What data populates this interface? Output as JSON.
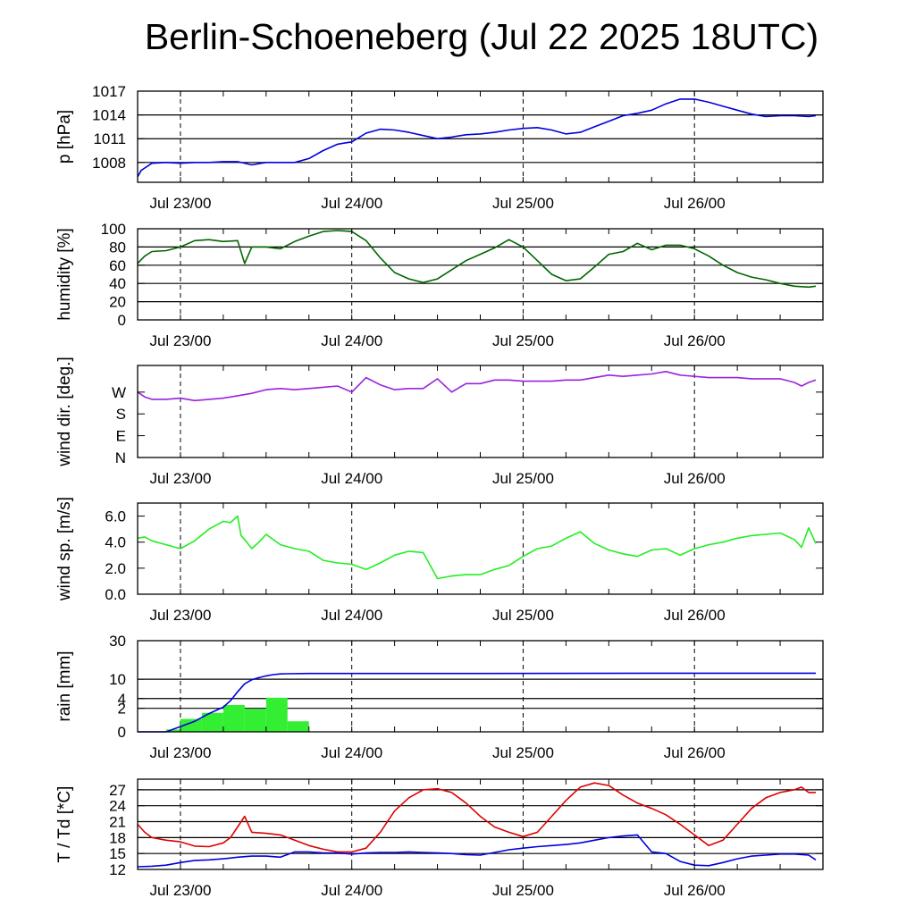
{
  "title": "Berlin-Schoeneberg (Jul 22 2025 18UTC)",
  "chart_data": [
    {
      "type": "line",
      "ylabel": "p [hPa]",
      "ylim": [
        1005.5,
        1017
      ],
      "yticks": [
        1008,
        1011,
        1014,
        1017
      ],
      "grid": true,
      "x_start": "Jul 22 18UTC",
      "x_tick_labels": [
        "Jul 23/00",
        "Jul 24/00",
        "Jul 25/00",
        "Jul 26/00"
      ],
      "series": [
        {
          "color": "#0000dd",
          "x": [
            0,
            0.5,
            1,
            2,
            4,
            6,
            8,
            10,
            12,
            14,
            16,
            18,
            20,
            22,
            24,
            26,
            28,
            30,
            32,
            34,
            36,
            38,
            40,
            42,
            44,
            46,
            48,
            50,
            52,
            54,
            56,
            58,
            60,
            62,
            64,
            66,
            68,
            70,
            72,
            74,
            76,
            78,
            80,
            82,
            84,
            86,
            88,
            90,
            92,
            94,
            95
          ],
          "values": [
            1006.2,
            1007,
            1007.3,
            1007.9,
            1008,
            1007.9,
            1008,
            1008,
            1008.1,
            1008.1,
            1007.7,
            1008,
            1008,
            1008,
            1008.5,
            1009.5,
            1010.3,
            1010.6,
            1011.7,
            1012.2,
            1012.1,
            1011.8,
            1011.4,
            1011,
            1011.2,
            1011.5,
            1011.6,
            1011.8,
            1012.1,
            1012.3,
            1012.4,
            1012.1,
            1011.6,
            1011.8,
            1012.5,
            1013.2,
            1013.9,
            1014.2,
            1014.6,
            1015.4,
            1016,
            1016,
            1015.6,
            1015.1,
            1014.6,
            1014.1,
            1013.8,
            1013.9,
            1013.9,
            1013.8,
            1013.9
          ]
        }
      ]
    },
    {
      "type": "line",
      "ylabel": "humidity [%]",
      "ylim": [
        0,
        100
      ],
      "yticks": [
        0,
        20,
        40,
        60,
        80,
        100
      ],
      "grid": true,
      "x_tick_labels": [
        "Jul 23/00",
        "Jul 24/00",
        "Jul 25/00",
        "Jul 26/00"
      ],
      "series": [
        {
          "color": "#006600",
          "x": [
            0,
            1,
            2,
            4,
            6,
            8,
            10,
            12,
            14,
            15,
            16,
            18,
            20,
            22,
            24,
            26,
            28,
            30,
            32,
            34,
            36,
            38,
            40,
            42,
            44,
            46,
            48,
            50,
            52,
            54,
            56,
            58,
            60,
            62,
            64,
            66,
            68,
            70,
            72,
            74,
            76,
            78,
            80,
            82,
            84,
            86,
            88,
            90,
            92,
            94,
            95
          ],
          "values": [
            62,
            70,
            75,
            76,
            80,
            87,
            88,
            86,
            87,
            62,
            80,
            80,
            78,
            86,
            92,
            97,
            98,
            97,
            87,
            68,
            52,
            45,
            41,
            45,
            55,
            65,
            72,
            79,
            88,
            80,
            65,
            50,
            43,
            45,
            58,
            72,
            75,
            84,
            77,
            82,
            82,
            78,
            70,
            60,
            52,
            47,
            44,
            40,
            37,
            36,
            37
          ]
        }
      ]
    },
    {
      "type": "line",
      "ylabel": "wind dir. [deg.]",
      "ylim": [
        0,
        380
      ],
      "yticks": [
        0,
        90,
        180,
        270
      ],
      "ytick_labels": [
        "N",
        "E",
        "S",
        "W"
      ],
      "grid": false,
      "x_tick_labels": [
        "Jul 23/00",
        "Jul 24/00",
        "Jul 25/00",
        "Jul 26/00"
      ],
      "series": [
        {
          "color": "#9922dd",
          "x": [
            0,
            1,
            2,
            4,
            6,
            8,
            10,
            12,
            14,
            16,
            18,
            20,
            22,
            24,
            26,
            28,
            30,
            32,
            34,
            36,
            38,
            40,
            42,
            44,
            46,
            48,
            50,
            52,
            54,
            56,
            58,
            60,
            62,
            64,
            66,
            68,
            70,
            72,
            74,
            76,
            78,
            80,
            82,
            84,
            86,
            88,
            90,
            92,
            93,
            94,
            95
          ],
          "values": [
            270,
            250,
            240,
            240,
            245,
            235,
            240,
            245,
            255,
            265,
            280,
            285,
            280,
            285,
            290,
            295,
            270,
            330,
            300,
            280,
            285,
            285,
            325,
            270,
            305,
            305,
            320,
            320,
            315,
            315,
            315,
            320,
            320,
            330,
            340,
            335,
            340,
            345,
            355,
            340,
            335,
            330,
            330,
            330,
            325,
            325,
            325,
            310,
            295,
            310,
            320
          ]
        }
      ]
    },
    {
      "type": "line",
      "ylabel": "wind sp. [m/s]",
      "ylim": [
        0,
        7
      ],
      "yticks": [
        0,
        2,
        4,
        6
      ],
      "ytick_labels": [
        "0.0",
        "2.0",
        "4.0",
        "6.0"
      ],
      "grid": false,
      "x_tick_labels": [
        "Jul 23/00",
        "Jul 24/00",
        "Jul 25/00",
        "Jul 26/00"
      ],
      "series": [
        {
          "color": "#22ee22",
          "x": [
            0,
            1,
            2,
            4,
            6,
            8,
            10,
            11,
            12,
            13,
            14,
            14.5,
            15,
            16,
            17,
            18,
            20,
            22,
            24,
            26,
            28,
            30,
            32,
            34,
            36,
            38,
            40,
            42,
            44,
            46,
            48,
            50,
            52,
            54,
            56,
            58,
            60,
            62,
            64,
            66,
            68,
            70,
            72,
            74,
            76,
            78,
            80,
            82,
            84,
            86,
            88,
            90,
            92,
            93,
            94,
            95
          ],
          "values": [
            4.3,
            4.4,
            4.1,
            3.8,
            3.5,
            4.1,
            5.0,
            5.3,
            5.6,
            5.5,
            6.0,
            4.5,
            4.2,
            3.5,
            4.0,
            4.6,
            3.8,
            3.5,
            3.3,
            2.6,
            2.4,
            2.3,
            1.9,
            2.4,
            3.0,
            3.3,
            3.2,
            1.2,
            1.4,
            1.5,
            1.5,
            1.9,
            2.2,
            2.9,
            3.5,
            3.7,
            4.3,
            4.8,
            3.9,
            3.4,
            3.1,
            2.9,
            3.4,
            3.5,
            3.0,
            3.5,
            3.8,
            4.0,
            4.3,
            4.5,
            4.6,
            4.7,
            4.2,
            3.6,
            5.1,
            3.9
          ]
        }
      ]
    },
    {
      "type": "bar",
      "ylabel": "rain [mm]",
      "ylim": [
        0,
        30
      ],
      "yscale": "sqrt",
      "yticks": [
        0,
        2,
        4,
        10,
        30
      ],
      "grid": true,
      "x_tick_labels": [
        "Jul 23/00",
        "Jul 24/00",
        "Jul 25/00",
        "Jul 26/00"
      ],
      "bar_color": "#33ee33",
      "bars": [
        {
          "x0": 4,
          "x1": 6,
          "value": 0.02
        },
        {
          "x0": 6,
          "x1": 9,
          "value": 0.6
        },
        {
          "x0": 9,
          "x1": 12,
          "value": 1.3
        },
        {
          "x0": 12,
          "x1": 15,
          "value": 2.6
        },
        {
          "x0": 15,
          "x1": 18,
          "value": 1.9
        },
        {
          "x0": 18,
          "x1": 21,
          "value": 4.2
        },
        {
          "x0": 21,
          "x1": 24,
          "value": 0.4
        }
      ],
      "series": [
        {
          "color": "#0000dd",
          "x": [
            0,
            4,
            6,
            8,
            10,
            12,
            13,
            14,
            15,
            16,
            17,
            18,
            19,
            20,
            21,
            24,
            48,
            72,
            95
          ],
          "values": [
            0,
            0,
            0.1,
            0.4,
            1.2,
            2.2,
            3.5,
            5.8,
            8.3,
            9.8,
            10.6,
            11.3,
            11.8,
            12.1,
            12.2,
            12.3,
            12.3,
            12.4,
            12.4
          ]
        }
      ]
    },
    {
      "type": "line",
      "ylabel": "T / Td [*C]",
      "ylim": [
        12,
        29
      ],
      "yticks": [
        12,
        15,
        18,
        21,
        24,
        27
      ],
      "grid": true,
      "x_tick_labels": [
        "Jul 23/00",
        "Jul 24/00",
        "Jul 25/00",
        "Jul 26/00"
      ],
      "series": [
        {
          "color": "#dd0000",
          "x": [
            0,
            1,
            2,
            4,
            6,
            8,
            10,
            12,
            13,
            14,
            15,
            16,
            18,
            20,
            22,
            24,
            26,
            28,
            30,
            32,
            34,
            36,
            38,
            40,
            42,
            44,
            46,
            48,
            50,
            52,
            54,
            56,
            58,
            60,
            62,
            64,
            66,
            68,
            70,
            72,
            74,
            76,
            78,
            80,
            82,
            84,
            86,
            88,
            90,
            92,
            93,
            94,
            95
          ],
          "values": [
            20.5,
            19,
            18,
            17.5,
            17.2,
            16.4,
            16.3,
            17,
            18,
            20,
            22,
            19,
            18.8,
            18.5,
            17.5,
            16.5,
            15.8,
            15.3,
            15.3,
            16,
            19,
            23,
            25.5,
            27,
            27.2,
            26.5,
            24.5,
            22,
            20,
            19,
            18.2,
            19,
            22,
            25,
            27.5,
            28.3,
            27.8,
            26,
            24.5,
            23.5,
            22.3,
            20.5,
            18.5,
            16.5,
            17.5,
            20.5,
            23.5,
            25.5,
            26.5,
            27,
            27.5,
            26.5,
            26.5
          ]
        },
        {
          "color": "#0000dd",
          "x": [
            0,
            2,
            4,
            6,
            8,
            10,
            12,
            14,
            16,
            18,
            20,
            22,
            24,
            26,
            28,
            30,
            32,
            34,
            36,
            38,
            40,
            42,
            44,
            46,
            48,
            50,
            52,
            54,
            56,
            58,
            60,
            62,
            64,
            66,
            68,
            70,
            72,
            74,
            76,
            78,
            80,
            82,
            84,
            86,
            88,
            90,
            92,
            94,
            95
          ],
          "values": [
            12.5,
            12.6,
            12.8,
            13.3,
            13.7,
            13.8,
            14,
            14.3,
            14.5,
            14.5,
            14.3,
            15.3,
            15.3,
            15.1,
            15.1,
            14.9,
            15.1,
            15.2,
            15.2,
            15.3,
            15.2,
            15.1,
            15.0,
            14.8,
            14.7,
            15.2,
            15.7,
            16.0,
            16.3,
            16.5,
            16.7,
            17,
            17.5,
            18,
            18.3,
            18.5,
            15.3,
            15,
            13.5,
            12.8,
            12.7,
            13.3,
            14,
            14.5,
            14.7,
            14.9,
            14.9,
            14.7,
            13.8
          ]
        }
      ]
    }
  ]
}
